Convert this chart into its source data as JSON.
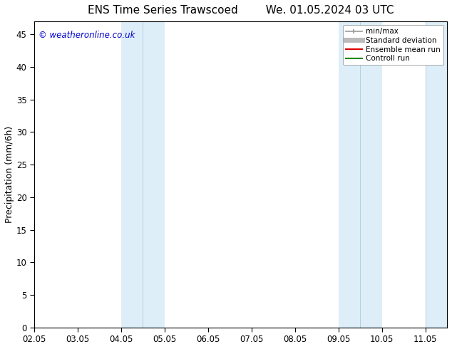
{
  "title": "ENS Time Series Trawscoed        We. 01.05.2024 03 UTC",
  "ylabel": "Precipitation (mm/6h)",
  "watermark": "© weatheronline.co.uk",
  "xlim_start": 0,
  "xlim_end": 9.5,
  "ylim": [
    0,
    47
  ],
  "yticks": [
    0,
    5,
    10,
    15,
    20,
    25,
    30,
    35,
    40,
    45
  ],
  "xtick_positions": [
    0,
    1,
    2,
    3,
    4,
    5,
    6,
    7,
    8,
    9
  ],
  "xtick_labels": [
    "02.05",
    "03.05",
    "04.05",
    "05.05",
    "06.05",
    "07.05",
    "08.05",
    "09.05",
    "10.05",
    "11.05"
  ],
  "shaded_bands": [
    {
      "xmin": 2.0,
      "xmax": 2.5,
      "color": "#ddeef8"
    },
    {
      "xmin": 2.5,
      "xmax": 3.0,
      "color": "#ddeef8"
    },
    {
      "xmin": 7.0,
      "xmax": 7.5,
      "color": "#ddeef8"
    },
    {
      "xmin": 7.5,
      "xmax": 8.0,
      "color": "#ddeef8"
    },
    {
      "xmin": 9.0,
      "xmax": 9.5,
      "color": "#ddeef8"
    }
  ],
  "band_dividers": [
    2.5,
    7.5
  ],
  "legend_items": [
    {
      "label": "min/max",
      "color": "#999999",
      "lw": 1.2,
      "style": "caps"
    },
    {
      "label": "Standard deviation",
      "color": "#bbbbbb",
      "lw": 5,
      "style": "line"
    },
    {
      "label": "Ensemble mean run",
      "color": "#dd0000",
      "lw": 1.5,
      "style": "line"
    },
    {
      "label": "Controll run",
      "color": "#008800",
      "lw": 1.5,
      "style": "line"
    }
  ],
  "bg_color": "#ffffff",
  "plot_bg_color": "#ffffff",
  "watermark_color": "#0000cc",
  "title_fontsize": 11,
  "axis_label_fontsize": 9,
  "tick_fontsize": 8.5,
  "legend_fontsize": 7.5
}
